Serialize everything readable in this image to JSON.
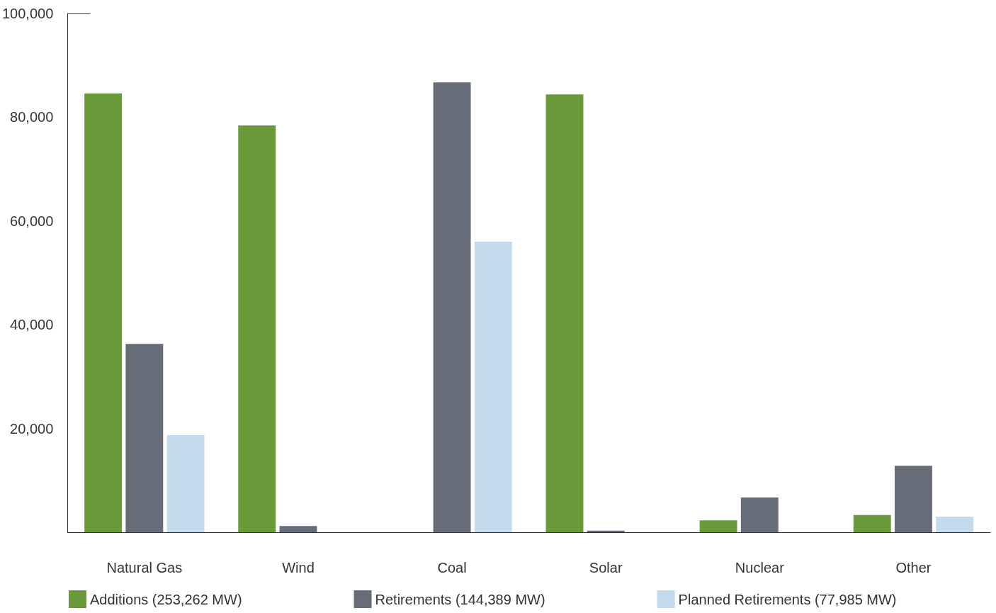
{
  "chart_data": {
    "type": "bar",
    "categories": [
      "Natural Gas",
      "Wind",
      "Coal",
      "Solar",
      "Nuclear",
      "Other"
    ],
    "series": [
      {
        "name": "Additions (253,262 MW)",
        "color": "#6a9a3a",
        "values": [
          84600,
          78400,
          0,
          84400,
          2300,
          3300
        ]
      },
      {
        "name": "Retirements (144,389 MW)",
        "color": "#666c78",
        "values": [
          36300,
          1200,
          86700,
          300,
          6700,
          12800
        ]
      },
      {
        "name": "Planned Retirements (77,985 MW)",
        "color": "#c3dbed",
        "values": [
          18700,
          null,
          56000,
          0,
          null,
          3000
        ]
      }
    ],
    "ylim": [
      0,
      100000
    ],
    "yticks": [
      {
        "value": 0,
        "label": null
      },
      {
        "value": 20000,
        "label": "20,000"
      },
      {
        "value": 40000,
        "label": "40,000"
      },
      {
        "value": 60000,
        "label": "60,000"
      },
      {
        "value": 80000,
        "label": "80,000"
      },
      {
        "value": 100000,
        "label": "100,000"
      }
    ],
    "grid": false,
    "legend": "bottom"
  }
}
